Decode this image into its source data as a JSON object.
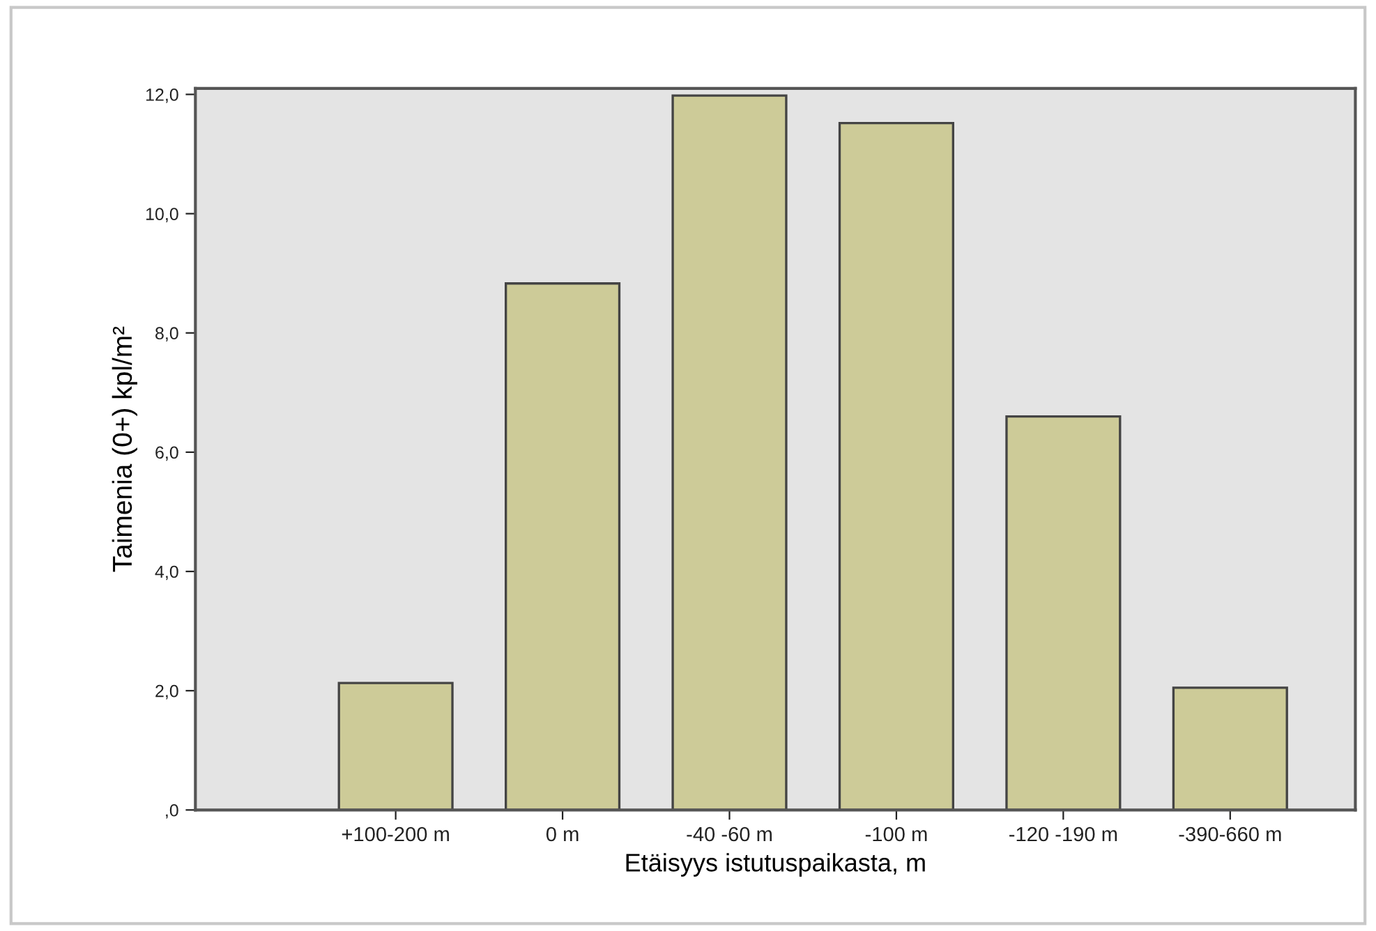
{
  "chart_data": {
    "type": "bar",
    "xlabel": "Etäisyys istutuspaikasta, m",
    "ylabel": "Taimenia (0+) kpl/m²",
    "categories": [
      "+100-200 m",
      "0 m",
      "-40 -60 m",
      "-100 m",
      "-120 -190 m",
      "-390-660 m"
    ],
    "values": [
      2.13,
      8.83,
      11.98,
      11.52,
      6.6,
      2.05
    ],
    "color": "#cdcb98",
    "ylim": [
      0,
      12.1
    ],
    "yticks": [
      {
        "value": 0,
        "label": ",0"
      },
      {
        "value": 2,
        "label": "2,0"
      },
      {
        "value": 4,
        "label": "4,0"
      },
      {
        "value": 6,
        "label": "6,0"
      },
      {
        "value": 8,
        "label": "8,0"
      },
      {
        "value": 10,
        "label": "10,0"
      },
      {
        "value": 12,
        "label": "12,0"
      }
    ],
    "grid": false
  }
}
